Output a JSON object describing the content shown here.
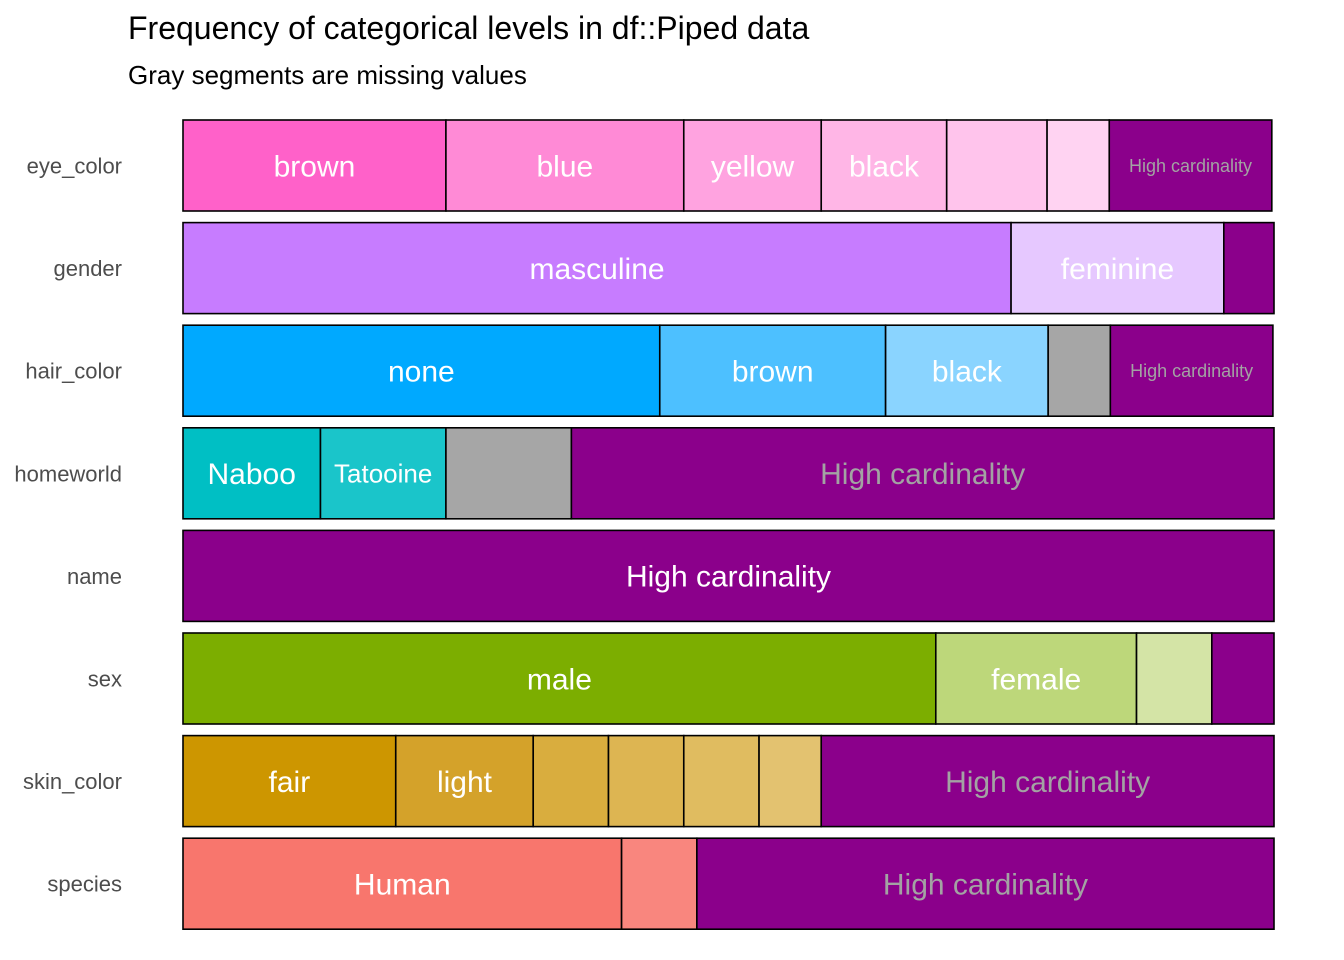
{
  "chart_data": {
    "type": "bar",
    "orientation": "horizontal",
    "stacked": "proportional",
    "title": "Frequency of categorical levels in df::Piped data",
    "subtitle": "Gray segments are missing values",
    "xlim": [
      0,
      1
    ],
    "grid": false,
    "legend": "none",
    "categories": [
      "eye_color",
      "gender",
      "hair_color",
      "homeworld",
      "name",
      "sex",
      "skin_color",
      "species"
    ],
    "rows": [
      {
        "variable": "eye_color",
        "segments": [
          {
            "label": "brown",
            "value": 0.241,
            "color": "#FF61C9",
            "text_color": "#ffffff"
          },
          {
            "label": "blue",
            "value": 0.218,
            "color": "#FF8AD6",
            "text_color": "#ffffff"
          },
          {
            "label": "yellow",
            "value": 0.126,
            "color": "#FFA3E0",
            "text_color": "#ffffff"
          },
          {
            "label": "black",
            "value": 0.115,
            "color": "#FFB6E6",
            "text_color": "#ffffff"
          },
          {
            "label": "",
            "value": 0.092,
            "color": "#FFC4EC",
            "text_color": "#ffffff"
          },
          {
            "label": "",
            "value": 0.057,
            "color": "#FFD3F2",
            "text_color": "#ffffff"
          },
          {
            "label": "High cardinality",
            "value": 0.149,
            "color": "#8B008B",
            "text_color": "#A3A3A3"
          }
        ]
      },
      {
        "variable": "gender",
        "segments": [
          {
            "label": "masculine",
            "value": 0.759,
            "color": "#C77CFF",
            "text_color": "#ffffff"
          },
          {
            "label": "feminine",
            "value": 0.195,
            "color": "#E6C8FF",
            "text_color": "#ffffff"
          },
          {
            "label": "",
            "value": 0.046,
            "color": "#8B008B",
            "text_color": "#A3A3A3"
          }
        ]
      },
      {
        "variable": "hair_color",
        "segments": [
          {
            "label": "none",
            "value": 0.437,
            "color": "#00A9FF",
            "text_color": "#ffffff"
          },
          {
            "label": "brown",
            "value": 0.207,
            "color": "#4DC0FF",
            "text_color": "#ffffff"
          },
          {
            "label": "black",
            "value": 0.149,
            "color": "#8AD4FF",
            "text_color": "#ffffff"
          },
          {
            "label": "",
            "value": 0.057,
            "color": "#A6A6A6",
            "text_color": "#ffffff"
          },
          {
            "label": "High cardinality",
            "value": 0.149,
            "color": "#8B008B",
            "text_color": "#A3A3A3"
          }
        ]
      },
      {
        "variable": "homeworld",
        "segments": [
          {
            "label": "Naboo",
            "value": 0.126,
            "color": "#00BFC4",
            "text_color": "#ffffff"
          },
          {
            "label": "Tatooine",
            "value": 0.115,
            "color": "#1AC5CA",
            "text_color": "#ffffff"
          },
          {
            "label": "",
            "value": 0.115,
            "color": "#A6A6A6",
            "text_color": "#ffffff"
          },
          {
            "label": "High cardinality",
            "value": 0.644,
            "color": "#8B008B",
            "text_color": "#A3A3A3"
          }
        ]
      },
      {
        "variable": "name",
        "segments": [
          {
            "label": "High cardinality",
            "value": 1.0,
            "color": "#8B008B",
            "text_color": "#ffffff"
          }
        ]
      },
      {
        "variable": "sex",
        "segments": [
          {
            "label": "male",
            "value": 0.69,
            "color": "#7CAE00",
            "text_color": "#ffffff"
          },
          {
            "label": "female",
            "value": 0.184,
            "color": "#BDD77A",
            "text_color": "#ffffff"
          },
          {
            "label": "",
            "value": 0.069,
            "color": "#D4E4A6",
            "text_color": "#ffffff"
          },
          {
            "label": "",
            "value": 0.057,
            "color": "#8B008B",
            "text_color": "#A3A3A3"
          }
        ]
      },
      {
        "variable": "skin_color",
        "segments": [
          {
            "label": "fair",
            "value": 0.195,
            "color": "#CD9600",
            "text_color": "#ffffff"
          },
          {
            "label": "light",
            "value": 0.126,
            "color": "#D4A22A",
            "text_color": "#ffffff"
          },
          {
            "label": "",
            "value": 0.069,
            "color": "#D9AD3E",
            "text_color": "#ffffff"
          },
          {
            "label": "",
            "value": 0.069,
            "color": "#DDB552",
            "text_color": "#ffffff"
          },
          {
            "label": "",
            "value": 0.069,
            "color": "#E0BC60",
            "text_color": "#ffffff"
          },
          {
            "label": "",
            "value": 0.057,
            "color": "#E3C270",
            "text_color": "#ffffff"
          },
          {
            "label": "High cardinality",
            "value": 0.415,
            "color": "#8B008B",
            "text_color": "#A3A3A3"
          }
        ]
      },
      {
        "variable": "species",
        "segments": [
          {
            "label": "Human",
            "value": 0.402,
            "color": "#F8766D",
            "text_color": "#ffffff"
          },
          {
            "label": "",
            "value": 0.069,
            "color": "#F9867E",
            "text_color": "#ffffff"
          },
          {
            "label": "High cardinality",
            "value": 0.529,
            "color": "#8B008B",
            "text_color": "#A3A3A3"
          }
        ]
      }
    ]
  }
}
